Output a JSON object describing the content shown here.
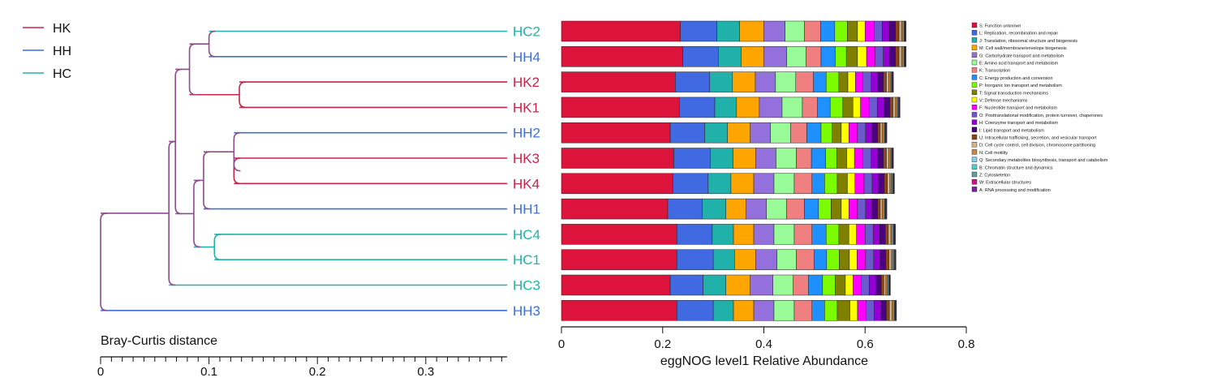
{
  "chart_data": {
    "type": "bar",
    "dendrogram": {
      "axis_label": "Bray-Curtis distance",
      "ticks": [
        "0",
        "0.1",
        "0.2",
        "0.3"
      ],
      "tick_values": [
        0,
        0.1,
        0.2,
        0.3
      ],
      "xlim": [
        0,
        0.375
      ],
      "groups": [
        {
          "name": "HK",
          "color": "#c8254a"
        },
        {
          "name": "HH",
          "color": "#3f6fd6"
        },
        {
          "name": "HC",
          "color": "#22b2a6"
        }
      ],
      "merges": [
        {
          "a": "HC2",
          "b": "HH4",
          "height": 0.1
        },
        {
          "a": "HK2",
          "b": "HK1",
          "height": 0.128
        },
        {
          "a": "m1",
          "b": "m2",
          "height": 0.082
        },
        {
          "a": "HK3",
          "b": "HK4",
          "height": 0.123
        },
        {
          "a": "HH2",
          "b": "m4",
          "height": 0.123
        },
        {
          "a": "m5",
          "b": "HH1",
          "height": 0.095
        },
        {
          "a": "HC4",
          "b": "HC1",
          "height": 0.105
        },
        {
          "a": "m6",
          "b": "m7",
          "height": 0.086
        },
        {
          "a": "m3",
          "b": "m8",
          "height": 0.069
        },
        {
          "a": "m9",
          "b": "HC3",
          "height": 0.063
        },
        {
          "a": "m10",
          "b": "HH3",
          "height": 0.0
        }
      ]
    },
    "samples": [
      {
        "label": "HC2",
        "group": "HC"
      },
      {
        "label": "HH4",
        "group": "HH"
      },
      {
        "label": "HK2",
        "group": "HK"
      },
      {
        "label": "HK1",
        "group": "HK"
      },
      {
        "label": "HH2",
        "group": "HH"
      },
      {
        "label": "HK3",
        "group": "HK"
      },
      {
        "label": "HK4",
        "group": "HK"
      },
      {
        "label": "HH1",
        "group": "HH"
      },
      {
        "label": "HC4",
        "group": "HC"
      },
      {
        "label": "HC1",
        "group": "HC"
      },
      {
        "label": "HC3",
        "group": "HC"
      },
      {
        "label": "HH3",
        "group": "HH"
      }
    ],
    "xlabel": "eggNOG level1 Relative Abundance",
    "xticks": [
      "0",
      "0.2",
      "0.4",
      "0.6",
      "0.8"
    ],
    "xtick_values": [
      0,
      0.2,
      0.4,
      0.6,
      0.8
    ],
    "xlim": [
      0,
      0.8
    ],
    "series": [
      {
        "name": "S: Function unknown",
        "color": "#dc143c",
        "values": [
          0.235,
          0.24,
          0.225,
          0.233,
          0.215,
          0.222,
          0.22,
          0.21,
          0.228,
          0.228,
          0.215,
          0.228
        ]
      },
      {
        "name": "L: Replication, recombination and repair",
        "color": "#4169e1",
        "values": [
          0.072,
          0.07,
          0.068,
          0.07,
          0.068,
          0.072,
          0.07,
          0.068,
          0.07,
          0.072,
          0.065,
          0.072
        ]
      },
      {
        "name": "J: Translation, ribosomal structure and biogenesis",
        "color": "#20b2aa",
        "values": [
          0.045,
          0.045,
          0.045,
          0.043,
          0.045,
          0.045,
          0.045,
          0.047,
          0.042,
          0.042,
          0.045,
          0.04
        ]
      },
      {
        "name": "M: Cell wall/membrane/envelope biogenesis",
        "color": "#ffa500",
        "values": [
          0.048,
          0.045,
          0.045,
          0.045,
          0.045,
          0.045,
          0.045,
          0.04,
          0.04,
          0.042,
          0.048,
          0.04
        ]
      },
      {
        "name": "G: Carbohydrate transport and metabolism",
        "color": "#9370db",
        "values": [
          0.042,
          0.045,
          0.04,
          0.045,
          0.04,
          0.04,
          0.04,
          0.04,
          0.04,
          0.042,
          0.045,
          0.04
        ]
      },
      {
        "name": "E: Amino acid transport and metabolism",
        "color": "#98fb98",
        "values": [
          0.038,
          0.038,
          0.04,
          0.04,
          0.04,
          0.04,
          0.04,
          0.04,
          0.04,
          0.038,
          0.04,
          0.04
        ]
      },
      {
        "name": "K: Transcription",
        "color": "#f08080",
        "values": [
          0.032,
          0.03,
          0.035,
          0.03,
          0.032,
          0.03,
          0.035,
          0.035,
          0.035,
          0.035,
          0.03,
          0.035
        ]
      },
      {
        "name": "C: Energy production and conversion",
        "color": "#1e90ff",
        "values": [
          0.028,
          0.028,
          0.025,
          0.025,
          0.028,
          0.028,
          0.025,
          0.028,
          0.028,
          0.025,
          0.028,
          0.025
        ]
      },
      {
        "name": "P: Inorganic ion transport and metabolism",
        "color": "#7cfc00",
        "values": [
          0.025,
          0.022,
          0.025,
          0.025,
          0.022,
          0.022,
          0.025,
          0.025,
          0.025,
          0.025,
          0.025,
          0.025
        ]
      },
      {
        "name": "T: Signal transduction mechanisms",
        "color": "#808000",
        "values": [
          0.02,
          0.022,
          0.018,
          0.02,
          0.018,
          0.02,
          0.02,
          0.02,
          0.02,
          0.02,
          0.02,
          0.025
        ]
      },
      {
        "name": "V: Defense mechanisms",
        "color": "#ffff00",
        "values": [
          0.015,
          0.018,
          0.015,
          0.015,
          0.015,
          0.015,
          0.015,
          0.015,
          0.015,
          0.015,
          0.015,
          0.015
        ]
      },
      {
        "name": "F: Nucleotide transport and metabolism",
        "color": "#ff00ff",
        "values": [
          0.018,
          0.017,
          0.015,
          0.017,
          0.017,
          0.017,
          0.018,
          0.017,
          0.017,
          0.017,
          0.016,
          0.017
        ]
      },
      {
        "name": "O: Posttranslational modification, protein turnover, chaperones",
        "color": "#6a5acd",
        "values": [
          0.016,
          0.016,
          0.016,
          0.016,
          0.016,
          0.016,
          0.016,
          0.016,
          0.016,
          0.016,
          0.016,
          0.016
        ]
      },
      {
        "name": "H: Coenzyme transport and metabolism",
        "color": "#9400d3",
        "values": [
          0.014,
          0.013,
          0.013,
          0.014,
          0.013,
          0.013,
          0.013,
          0.013,
          0.013,
          0.013,
          0.013,
          0.013
        ]
      },
      {
        "name": "I: Lipid transport and metabolism",
        "color": "#4b0082",
        "values": [
          0.012,
          0.011,
          0.011,
          0.011,
          0.011,
          0.011,
          0.011,
          0.011,
          0.011,
          0.011,
          0.011,
          0.011
        ]
      },
      {
        "name": "U: Intracellular trafficking, secretion, and vesicular transport",
        "color": "#8b4513",
        "values": [
          0.007,
          0.007,
          0.006,
          0.006,
          0.005,
          0.006,
          0.006,
          0.005,
          0.006,
          0.006,
          0.005,
          0.006
        ]
      },
      {
        "name": "D: Cell cycle control, cell division, chromosome partitioning",
        "color": "#d2b48c",
        "values": [
          0.005,
          0.005,
          0.005,
          0.005,
          0.004,
          0.005,
          0.005,
          0.004,
          0.005,
          0.005,
          0.004,
          0.005
        ]
      },
      {
        "name": "N: Cell motility",
        "color": "#cd853f",
        "values": [
          0.003,
          0.003,
          0.003,
          0.003,
          0.003,
          0.003,
          0.003,
          0.003,
          0.003,
          0.003,
          0.003,
          0.003
        ]
      },
      {
        "name": "Q: Secondary metabolites biosynthesis, transport and catabolism",
        "color": "#87ceeb",
        "values": [
          0.002,
          0.002,
          0.002,
          0.002,
          0.002,
          0.002,
          0.002,
          0.002,
          0.002,
          0.002,
          0.002,
          0.002
        ]
      },
      {
        "name": "B: Chromatin structure and dynamics",
        "color": "#48d1cc",
        "values": [
          0.001,
          0.001,
          0.001,
          0.001,
          0.001,
          0.001,
          0.001,
          0.001,
          0.001,
          0.001,
          0.001,
          0.001
        ]
      },
      {
        "name": "Z: Cytoskeleton",
        "color": "#5f9ea0",
        "values": [
          0.001,
          0.001,
          0.001,
          0.001,
          0.001,
          0.001,
          0.001,
          0.001,
          0.001,
          0.001,
          0.001,
          0.001
        ]
      },
      {
        "name": "W: Extracellular structures",
        "color": "#c71585",
        "values": [
          0.001,
          0.001,
          0.001,
          0.001,
          0.001,
          0.001,
          0.001,
          0.001,
          0.001,
          0.001,
          0.001,
          0.001
        ]
      },
      {
        "name": "A: RNA processing and modification",
        "color": "#7b1fa2",
        "values": [
          0.001,
          0.001,
          0.001,
          0.001,
          0.001,
          0.001,
          0.001,
          0.001,
          0.001,
          0.001,
          0.001,
          0.001
        ]
      }
    ],
    "legend_placement": "right"
  }
}
